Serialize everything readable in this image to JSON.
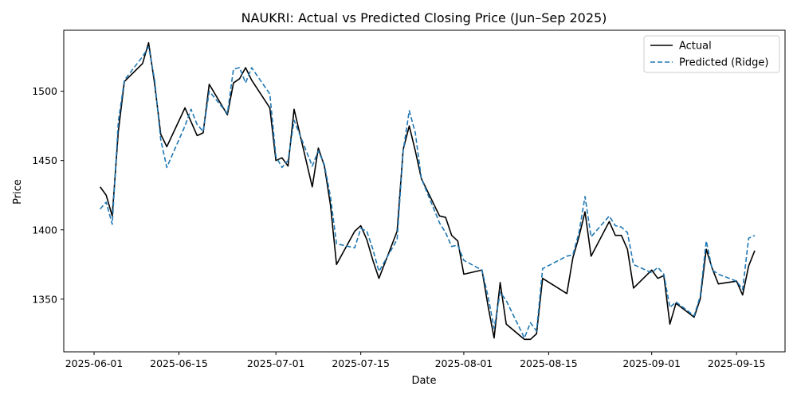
{
  "chart_data": {
    "type": "line",
    "title": "NAUKRI: Actual vs Predicted Closing Price (Jun–Sep 2025)",
    "xlabel": "Date",
    "ylabel": "Price",
    "xlim": [
      "2025-05-27",
      "2025-09-23"
    ],
    "ylim": [
      1312,
      1544
    ],
    "x_ticks": [
      "2025-06-01",
      "2025-06-15",
      "2025-07-01",
      "2025-07-15",
      "2025-08-01",
      "2025-08-15",
      "2025-09-01",
      "2025-09-15"
    ],
    "y_ticks": [
      1350,
      1400,
      1450,
      1500
    ],
    "grid": false,
    "legend": "top-right",
    "series": [
      {
        "name": "Actual",
        "color": "#000000",
        "dash": "solid",
        "points": [
          [
            "2025-06-02",
            1431
          ],
          [
            "2025-06-03",
            1425
          ],
          [
            "2025-06-04",
            1410
          ],
          [
            "2025-06-05",
            1471
          ],
          [
            "2025-06-06",
            1507
          ],
          [
            "2025-06-09",
            1520
          ],
          [
            "2025-06-10",
            1535
          ],
          [
            "2025-06-11",
            1505
          ],
          [
            "2025-06-12",
            1469
          ],
          [
            "2025-06-13",
            1460
          ],
          [
            "2025-06-16",
            1488
          ],
          [
            "2025-06-17",
            1478
          ],
          [
            "2025-06-18",
            1468
          ],
          [
            "2025-06-19",
            1470
          ],
          [
            "2025-06-20",
            1505
          ],
          [
            "2025-06-23",
            1483
          ],
          [
            "2025-06-24",
            1506
          ],
          [
            "2025-06-25",
            1509
          ],
          [
            "2025-06-26",
            1517
          ],
          [
            "2025-06-27",
            1508
          ],
          [
            "2025-06-30",
            1488
          ],
          [
            "2025-07-01",
            1450
          ],
          [
            "2025-07-02",
            1452
          ],
          [
            "2025-07-03",
            1446
          ],
          [
            "2025-07-04",
            1487
          ],
          [
            "2025-07-07",
            1431
          ],
          [
            "2025-07-08",
            1459
          ],
          [
            "2025-07-09",
            1446
          ],
          [
            "2025-07-10",
            1418
          ],
          [
            "2025-07-11",
            1375
          ],
          [
            "2025-07-14",
            1399
          ],
          [
            "2025-07-15",
            1403
          ],
          [
            "2025-07-16",
            1393
          ],
          [
            "2025-07-17",
            1378
          ],
          [
            "2025-07-18",
            1365
          ],
          [
            "2025-07-21",
            1399
          ],
          [
            "2025-07-22",
            1458
          ],
          [
            "2025-07-23",
            1475
          ],
          [
            "2025-07-24",
            1457
          ],
          [
            "2025-07-25",
            1437
          ],
          [
            "2025-07-28",
            1410
          ],
          [
            "2025-07-29",
            1409
          ],
          [
            "2025-07-30",
            1396
          ],
          [
            "2025-07-31",
            1392
          ],
          [
            "2025-08-01",
            1368
          ],
          [
            "2025-08-04",
            1371
          ],
          [
            "2025-08-05",
            1345
          ],
          [
            "2025-08-06",
            1322
          ],
          [
            "2025-08-07",
            1362
          ],
          [
            "2025-08-08",
            1332
          ],
          [
            "2025-08-11",
            1321
          ],
          [
            "2025-08-12",
            1321
          ],
          [
            "2025-08-13",
            1325
          ],
          [
            "2025-08-14",
            1365
          ],
          [
            "2025-08-18",
            1354
          ],
          [
            "2025-08-19",
            1380
          ],
          [
            "2025-08-20",
            1395
          ],
          [
            "2025-08-21",
            1413
          ],
          [
            "2025-08-22",
            1381
          ],
          [
            "2025-08-25",
            1406
          ],
          [
            "2025-08-26",
            1396
          ],
          [
            "2025-08-27",
            1396
          ],
          [
            "2025-08-28",
            1386
          ],
          [
            "2025-08-29",
            1358
          ],
          [
            "2025-09-01",
            1371
          ],
          [
            "2025-09-02",
            1365
          ],
          [
            "2025-09-03",
            1367
          ],
          [
            "2025-09-04",
            1332
          ],
          [
            "2025-09-05",
            1347
          ],
          [
            "2025-09-08",
            1337
          ],
          [
            "2025-09-09",
            1350
          ],
          [
            "2025-09-10",
            1386
          ],
          [
            "2025-09-11",
            1372
          ],
          [
            "2025-09-12",
            1361
          ],
          [
            "2025-09-15",
            1363
          ],
          [
            "2025-09-16",
            1353
          ],
          [
            "2025-09-17",
            1374
          ],
          [
            "2025-09-18",
            1385
          ]
        ]
      },
      {
        "name": "Predicted (Ridge)",
        "color": "#1f77b4",
        "dash": "dashed",
        "points": [
          [
            "2025-06-02",
            1415
          ],
          [
            "2025-06-03",
            1420
          ],
          [
            "2025-06-04",
            1404
          ],
          [
            "2025-06-05",
            1478
          ],
          [
            "2025-06-06",
            1508
          ],
          [
            "2025-06-09",
            1525
          ],
          [
            "2025-06-10",
            1532
          ],
          [
            "2025-06-11",
            1508
          ],
          [
            "2025-06-12",
            1465
          ],
          [
            "2025-06-13",
            1445
          ],
          [
            "2025-06-16",
            1475
          ],
          [
            "2025-06-17",
            1487
          ],
          [
            "2025-06-18",
            1476
          ],
          [
            "2025-06-19",
            1471
          ],
          [
            "2025-06-20",
            1500
          ],
          [
            "2025-06-23",
            1484
          ],
          [
            "2025-06-24",
            1516
          ],
          [
            "2025-06-25",
            1517
          ],
          [
            "2025-06-26",
            1506
          ],
          [
            "2025-06-27",
            1517
          ],
          [
            "2025-06-30",
            1498
          ],
          [
            "2025-07-01",
            1453
          ],
          [
            "2025-07-02",
            1445
          ],
          [
            "2025-07-03",
            1450
          ],
          [
            "2025-07-04",
            1479
          ],
          [
            "2025-07-07",
            1446
          ],
          [
            "2025-07-08",
            1457
          ],
          [
            "2025-07-09",
            1447
          ],
          [
            "2025-07-10",
            1424
          ],
          [
            "2025-07-11",
            1390
          ],
          [
            "2025-07-14",
            1387
          ],
          [
            "2025-07-15",
            1401
          ],
          [
            "2025-07-16",
            1399
          ],
          [
            "2025-07-17",
            1386
          ],
          [
            "2025-07-18",
            1370
          ],
          [
            "2025-07-21",
            1393
          ],
          [
            "2025-07-22",
            1457
          ],
          [
            "2025-07-23",
            1486
          ],
          [
            "2025-07-24",
            1470
          ],
          [
            "2025-07-25",
            1437
          ],
          [
            "2025-07-28",
            1405
          ],
          [
            "2025-07-29",
            1398
          ],
          [
            "2025-07-30",
            1388
          ],
          [
            "2025-07-31",
            1389
          ],
          [
            "2025-08-01",
            1378
          ],
          [
            "2025-08-04",
            1371
          ],
          [
            "2025-08-05",
            1352
          ],
          [
            "2025-08-06",
            1329
          ],
          [
            "2025-08-07",
            1355
          ],
          [
            "2025-08-08",
            1349
          ],
          [
            "2025-08-11",
            1322
          ],
          [
            "2025-08-12",
            1333
          ],
          [
            "2025-08-13",
            1327
          ],
          [
            "2025-08-14",
            1372
          ],
          [
            "2025-08-18",
            1381
          ],
          [
            "2025-08-19",
            1382
          ],
          [
            "2025-08-20",
            1398
          ],
          [
            "2025-08-21",
            1424
          ],
          [
            "2025-08-22",
            1395
          ],
          [
            "2025-08-25",
            1410
          ],
          [
            "2025-08-26",
            1403
          ],
          [
            "2025-08-27",
            1402
          ],
          [
            "2025-08-28",
            1398
          ],
          [
            "2025-08-29",
            1375
          ],
          [
            "2025-09-01",
            1369
          ],
          [
            "2025-09-02",
            1373
          ],
          [
            "2025-09-03",
            1368
          ],
          [
            "2025-09-04",
            1344
          ],
          [
            "2025-09-05",
            1348
          ],
          [
            "2025-09-08",
            1338
          ],
          [
            "2025-09-09",
            1352
          ],
          [
            "2025-09-10",
            1392
          ],
          [
            "2025-09-11",
            1371
          ],
          [
            "2025-09-12",
            1368
          ],
          [
            "2025-09-15",
            1363
          ],
          [
            "2025-09-16",
            1357
          ],
          [
            "2025-09-17",
            1394
          ],
          [
            "2025-09-18",
            1396
          ]
        ]
      }
    ]
  }
}
